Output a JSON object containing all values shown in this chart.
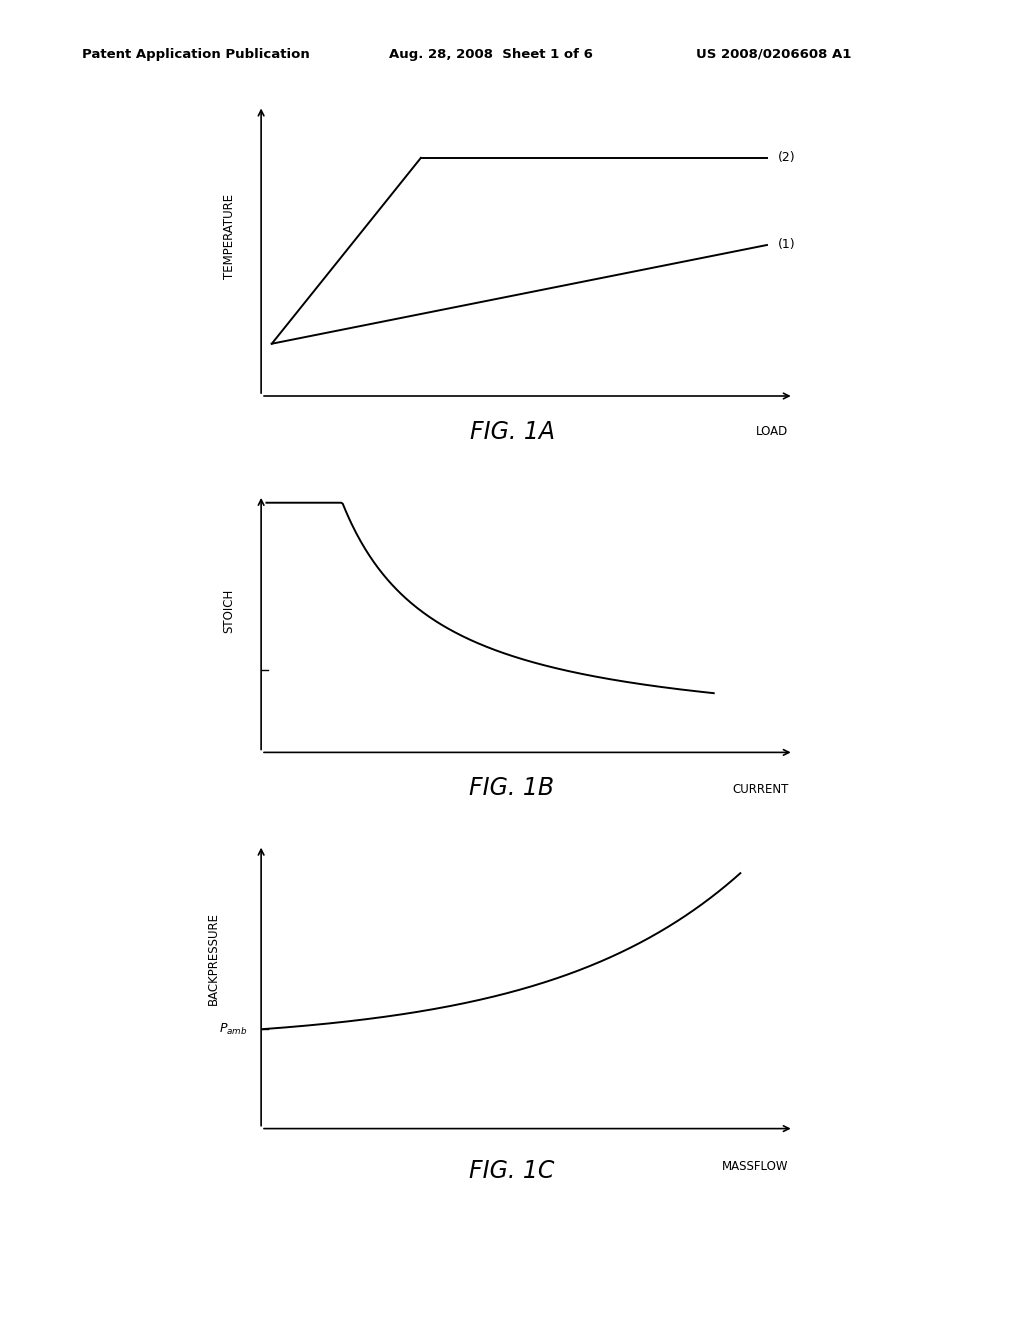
{
  "bg_color": "#ffffff",
  "header_left": "Patent Application Publication",
  "header_mid": "Aug. 28, 2008  Sheet 1 of 6",
  "header_right": "US 2008/0206608 A1",
  "fig1a_title": "FIG. 1A",
  "fig1b_title": "FIG. 1B",
  "fig1c_title": "FIG. 1C",
  "fig1a_ylabel": "TEMPERATURE",
  "fig1a_xlabel": "LOAD",
  "fig1b_ylabel": "STOICH",
  "fig1b_xlabel": "CURRENT",
  "fig1c_ylabel": "BACKPRESSURE",
  "fig1c_xlabel": "MASSFLOW",
  "line_color": "#000000",
  "line_width": 1.4,
  "header_fontsize": 9.5,
  "axis_label_fontsize": 8.5,
  "fig_caption_fontsize": 17,
  "annotation_fontsize": 9
}
